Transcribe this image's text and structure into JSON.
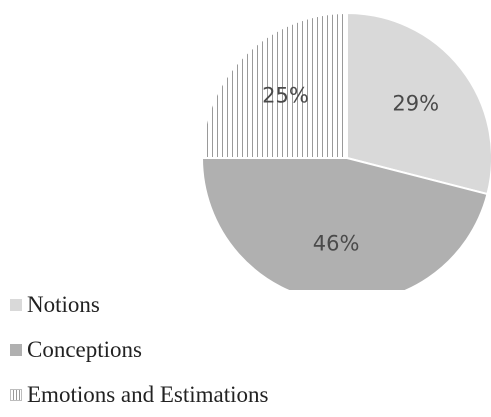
{
  "chart_data": {
    "type": "pie",
    "categories": [
      "Notions",
      "Conceptions",
      "Emotions and Estimations"
    ],
    "values": [
      29,
      46,
      25
    ],
    "value_labels": [
      "29%",
      "46%",
      "25%"
    ],
    "start_angle_deg": 0,
    "direction": "clockwise",
    "legend_position": "bottom-left",
    "colors": [
      "#d9d9d9",
      "#b0b0b0",
      "#ffffff"
    ],
    "patterns": [
      "solid",
      "solid",
      "vertical-stripes"
    ]
  }
}
